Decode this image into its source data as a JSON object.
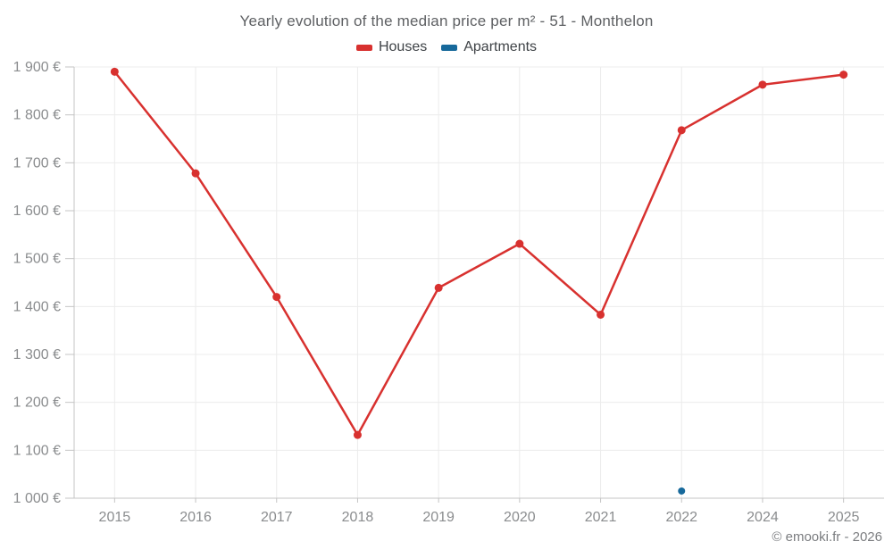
{
  "chart_data": {
    "type": "line",
    "title": "Yearly evolution of the median price per m² - 51 - Monthelon",
    "categories": [
      "2015",
      "2016",
      "2017",
      "2018",
      "2019",
      "2020",
      "2021",
      "2022",
      "2024",
      "2025"
    ],
    "series": [
      {
        "name": "Houses",
        "color": "#d8312f",
        "values": [
          1890,
          1678,
          1420,
          1132,
          1439,
          1531,
          1383,
          1768,
          1863,
          1884
        ]
      },
      {
        "name": "Apartments",
        "color": "#17699b",
        "values": [
          null,
          null,
          null,
          null,
          null,
          null,
          null,
          1015,
          null,
          null
        ]
      }
    ],
    "ylim": [
      1000,
      1900
    ],
    "yticks": [
      {
        "value": 1000,
        "label": "1 000 €"
      },
      {
        "value": 1100,
        "label": "1 100 €"
      },
      {
        "value": 1200,
        "label": "1 200 €"
      },
      {
        "value": 1300,
        "label": "1 300 €"
      },
      {
        "value": 1400,
        "label": "1 400 €"
      },
      {
        "value": 1500,
        "label": "1 500 €"
      },
      {
        "value": 1600,
        "label": "1 600 €"
      },
      {
        "value": 1700,
        "label": "1 700 €"
      },
      {
        "value": 1800,
        "label": "1 800 €"
      },
      {
        "value": 1900,
        "label": "1 900 €"
      }
    ],
    "grid": true,
    "legend_position": "top",
    "footer": "© emooki.fr - 2026",
    "colors": {
      "grid": "#ececec",
      "axis": "#c4c4c4",
      "tick_label": "#8a8c8e",
      "title": "#5e6063",
      "legend_text": "#3f4347",
      "footer": "#7b7d80"
    }
  }
}
